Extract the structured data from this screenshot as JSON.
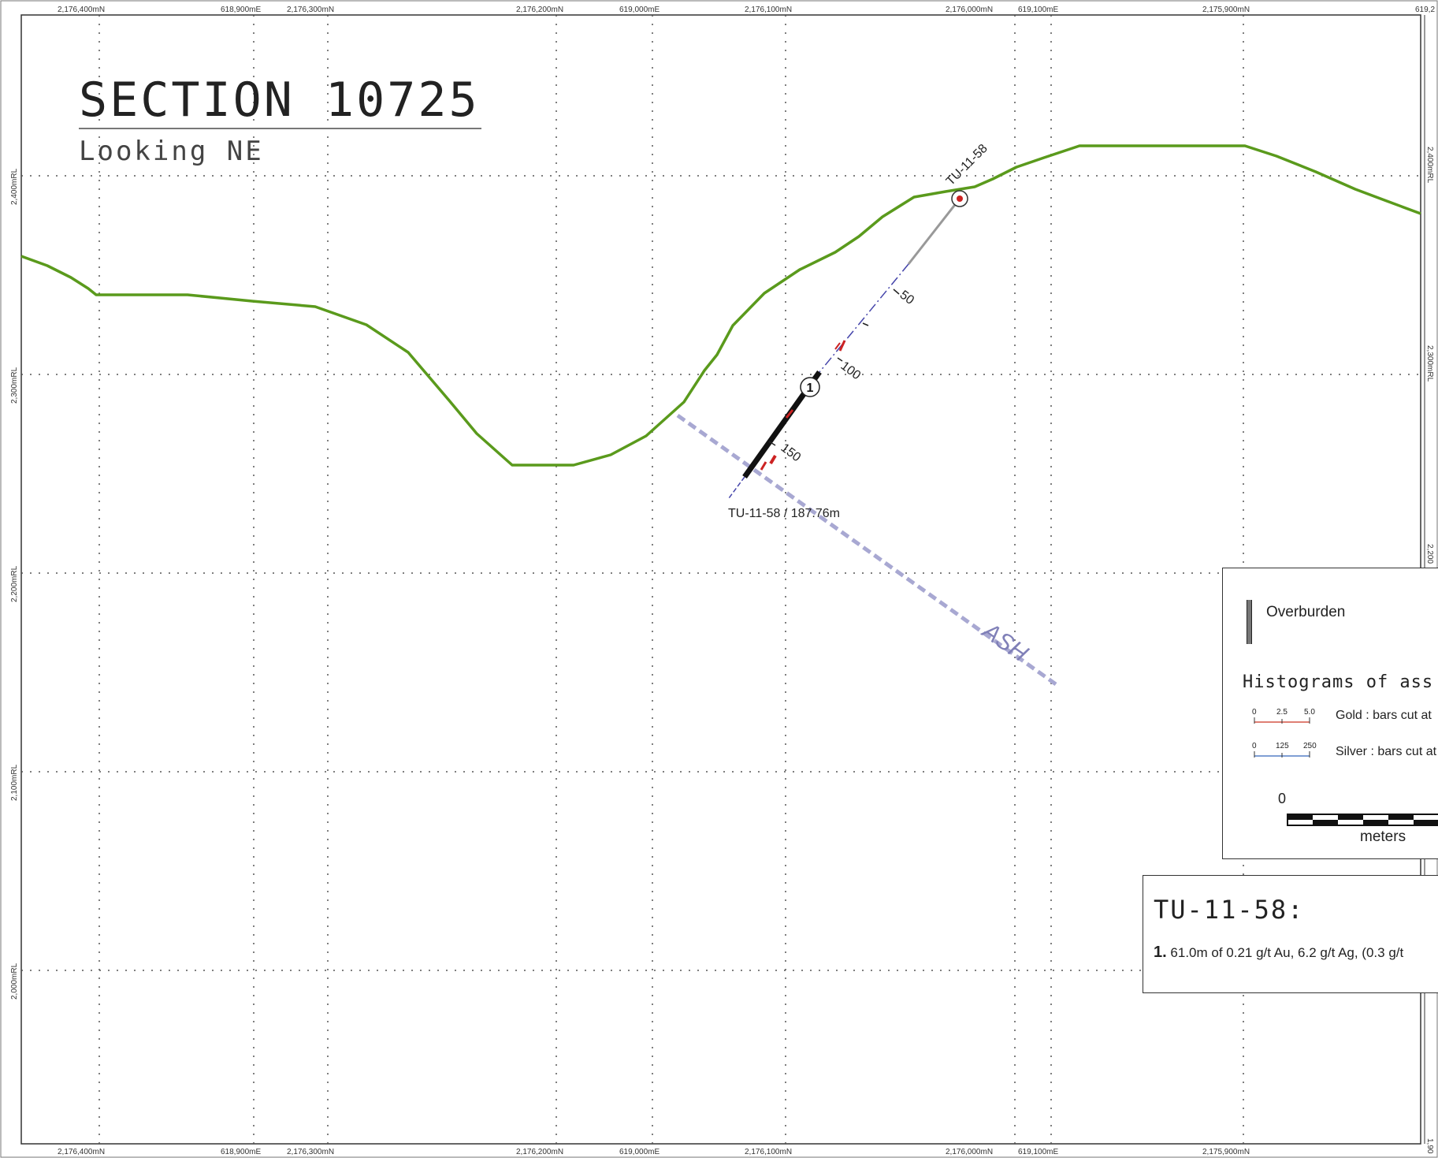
{
  "section": {
    "title": "SECTION 10725",
    "subtitle": "Looking NE"
  },
  "grid": {
    "top_labels": [
      "2,176,400mN",
      "618,900mE",
      "2,176,300mN",
      "2,176,200mN",
      "619,000mE",
      "2,176,100mN",
      "2,176,000mN",
      "619,100mE",
      "2,175,900mN",
      "619,2"
    ],
    "bottom_labels": [
      "2,176,400mN",
      "618,900mE",
      "2,176,300mN",
      "2,176,200mN",
      "619,000mE",
      "2,176,100mN",
      "2,176,000mN",
      "619,100mE",
      "2,175,900mN"
    ],
    "left_elevations": [
      "2,400mRL",
      "2,300mRL",
      "2,200mRL",
      "2,100mRL",
      "2,000mRL"
    ],
    "right_elevations": [
      "2,400mRL",
      "2,300mRL",
      "2,200",
      "1,90"
    ]
  },
  "drillhole": {
    "collar_label": "TU-11-58",
    "end_label": "TU-11-58 / 187.76m",
    "depth_ticks": [
      "50",
      "100",
      "150"
    ],
    "intercept_number": "1"
  },
  "geology": {
    "unit_label": "ASH"
  },
  "legend": {
    "overburden_label": "Overburden",
    "histograms_title": "Histograms of ass",
    "gold_label": "Gold :  bars cut at",
    "gold_scale": [
      "0",
      "2.5",
      "5.0"
    ],
    "silver_label": "Silver : bars cut at",
    "silver_scale": [
      "0",
      "125",
      "250"
    ],
    "scale_zero": "0",
    "scale_unit": "meters"
  },
  "summary": {
    "hole": "TU-11-58:",
    "item_number": "1.",
    "item_text": "61.0m of 0.21 g/t Au, 6.2 g/t Ag, (0.3 g/t"
  },
  "colors": {
    "topography": "#5a9a1c",
    "fault": "#a8a8d2",
    "fault_label": "#8080b8",
    "grid": "#555555",
    "assay": "#cc2222"
  }
}
